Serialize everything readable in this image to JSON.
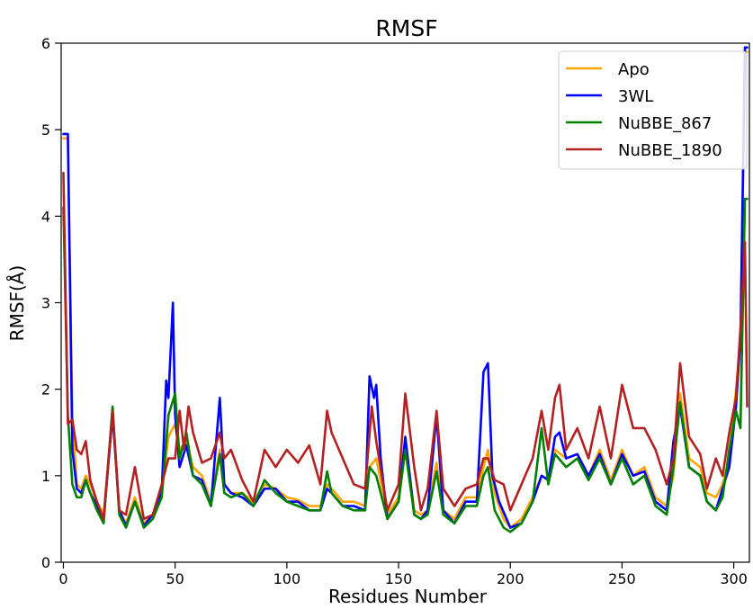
{
  "chart_data": {
    "type": "line",
    "title": "RMSF",
    "xlabel": "Residues Number",
    "ylabel": "RMSF(Å)",
    "xlim": [
      -1,
      307
    ],
    "ylim": [
      0,
      6
    ],
    "xticks": [
      0,
      50,
      100,
      150,
      200,
      250,
      300
    ],
    "yticks": [
      0,
      1,
      2,
      3,
      4,
      5,
      6
    ],
    "grid": false,
    "legend_position": "top-right",
    "series": [
      {
        "name": "Apo",
        "color": "#FFA500",
        "x": [
          0,
          2,
          4,
          6,
          8,
          10,
          12,
          15,
          18,
          22,
          25,
          28,
          32,
          36,
          40,
          44,
          47,
          50,
          52,
          55,
          58,
          62,
          66,
          70,
          72,
          75,
          80,
          85,
          90,
          95,
          100,
          105,
          110,
          115,
          118,
          120,
          125,
          130,
          135,
          137,
          140,
          145,
          150,
          153,
          157,
          160,
          163,
          167,
          170,
          175,
          180,
          185,
          188,
          190,
          193,
          197,
          200,
          205,
          210,
          214,
          217,
          220,
          225,
          230,
          235,
          240,
          245,
          250,
          255,
          260,
          265,
          270,
          273,
          276,
          280,
          285,
          288,
          292,
          295,
          298,
          301,
          303,
          305,
          306
        ],
        "y": [
          4.9,
          4.9,
          1.7,
          0.9,
          0.85,
          1.0,
          0.9,
          0.7,
          0.55,
          1.75,
          0.6,
          0.45,
          0.75,
          0.45,
          0.55,
          0.8,
          1.45,
          1.6,
          1.3,
          1.4,
          1.1,
          1.0,
          0.7,
          1.3,
          0.9,
          0.8,
          0.8,
          0.7,
          0.9,
          0.85,
          0.75,
          0.72,
          0.65,
          0.65,
          0.9,
          0.85,
          0.7,
          0.7,
          0.65,
          1.1,
          1.2,
          0.55,
          0.75,
          1.4,
          0.6,
          0.55,
          0.6,
          1.15,
          0.6,
          0.5,
          0.75,
          0.75,
          1.1,
          1.3,
          0.8,
          0.5,
          0.4,
          0.5,
          0.75,
          1.0,
          0.95,
          1.3,
          1.2,
          1.25,
          1.0,
          1.3,
          0.95,
          1.3,
          1.0,
          1.1,
          0.75,
          0.65,
          1.0,
          1.95,
          1.2,
          1.1,
          0.8,
          0.75,
          0.9,
          1.2,
          2.0,
          2.5,
          5.9,
          5.9
        ]
      },
      {
        "name": "3WL",
        "color": "#0000FF",
        "x": [
          0,
          2,
          4,
          6,
          8,
          10,
          12,
          15,
          18,
          22,
          25,
          28,
          32,
          36,
          40,
          44,
          46,
          47,
          49,
          50,
          52,
          55,
          58,
          62,
          66,
          70,
          72,
          75,
          80,
          85,
          90,
          95,
          100,
          105,
          110,
          115,
          118,
          120,
          125,
          130,
          135,
          137,
          139,
          140,
          142,
          145,
          150,
          153,
          157,
          160,
          163,
          167,
          170,
          175,
          180,
          185,
          188,
          190,
          192,
          195,
          200,
          205,
          210,
          214,
          217,
          220,
          222,
          225,
          230,
          235,
          240,
          245,
          250,
          255,
          260,
          265,
          270,
          273,
          276,
          280,
          285,
          288,
          292,
          295,
          298,
          301,
          303,
          305,
          306
        ],
        "y": [
          4.95,
          4.95,
          1.3,
          0.85,
          0.8,
          0.95,
          0.8,
          0.65,
          0.5,
          1.7,
          0.6,
          0.42,
          0.7,
          0.42,
          0.55,
          0.8,
          2.1,
          1.9,
          3.0,
          1.7,
          1.1,
          1.35,
          1.0,
          0.95,
          0.65,
          1.9,
          0.9,
          0.8,
          0.75,
          0.65,
          0.85,
          0.85,
          0.7,
          0.7,
          0.6,
          0.6,
          0.85,
          0.8,
          0.65,
          0.65,
          0.6,
          2.15,
          1.9,
          2.05,
          1.2,
          0.5,
          0.7,
          1.45,
          0.55,
          0.5,
          0.6,
          1.7,
          0.6,
          0.45,
          0.7,
          0.7,
          2.2,
          2.3,
          1.0,
          0.7,
          0.4,
          0.45,
          0.7,
          1.0,
          0.95,
          1.45,
          1.5,
          1.2,
          1.25,
          1.0,
          1.25,
          0.9,
          1.25,
          1.0,
          1.05,
          0.7,
          0.6,
          1.4,
          1.8,
          1.1,
          1.0,
          0.7,
          0.6,
          0.85,
          1.1,
          1.8,
          2.6,
          5.95,
          5.95
        ]
      },
      {
        "name": "NuBBE_867",
        "color": "#008000",
        "x": [
          0,
          2,
          4,
          6,
          8,
          10,
          12,
          15,
          18,
          22,
          25,
          28,
          32,
          36,
          40,
          44,
          47,
          50,
          52,
          55,
          58,
          62,
          66,
          70,
          72,
          75,
          80,
          85,
          90,
          95,
          100,
          105,
          110,
          115,
          118,
          120,
          125,
          130,
          135,
          137,
          140,
          145,
          150,
          153,
          157,
          160,
          163,
          167,
          170,
          175,
          180,
          185,
          188,
          190,
          193,
          197,
          200,
          205,
          210,
          214,
          217,
          220,
          225,
          230,
          235,
          240,
          245,
          250,
          255,
          260,
          265,
          270,
          273,
          276,
          280,
          285,
          288,
          292,
          295,
          298,
          301,
          303,
          305,
          306
        ],
        "y": [
          4.1,
          1.7,
          0.9,
          0.75,
          0.75,
          0.95,
          0.8,
          0.6,
          0.45,
          1.8,
          0.55,
          0.4,
          0.7,
          0.4,
          0.5,
          0.75,
          1.7,
          1.95,
          1.2,
          1.5,
          1.0,
          0.9,
          0.65,
          1.25,
          0.8,
          0.75,
          0.8,
          0.65,
          0.95,
          0.8,
          0.7,
          0.65,
          0.6,
          0.6,
          1.05,
          0.8,
          0.65,
          0.6,
          0.6,
          1.1,
          1.0,
          0.5,
          0.7,
          1.3,
          0.55,
          0.5,
          0.55,
          1.05,
          0.55,
          0.45,
          0.65,
          0.65,
          1.0,
          1.1,
          0.6,
          0.4,
          0.35,
          0.45,
          0.7,
          1.55,
          0.9,
          1.25,
          1.1,
          1.2,
          0.95,
          1.2,
          0.9,
          1.2,
          0.9,
          1.0,
          0.65,
          0.55,
          1.1,
          1.85,
          1.1,
          1.0,
          0.7,
          0.6,
          0.75,
          1.3,
          1.75,
          1.55,
          4.2,
          4.2
        ]
      },
      {
        "name": "NuBBE_1890",
        "color": "#B22222",
        "x": [
          0,
          2,
          4,
          6,
          8,
          10,
          12,
          15,
          18,
          22,
          25,
          28,
          32,
          36,
          40,
          44,
          47,
          50,
          52,
          54,
          56,
          58,
          62,
          66,
          70,
          72,
          75,
          80,
          85,
          90,
          95,
          100,
          105,
          110,
          115,
          118,
          120,
          125,
          130,
          135,
          138,
          140,
          145,
          150,
          153,
          157,
          160,
          163,
          167,
          170,
          175,
          180,
          185,
          188,
          190,
          193,
          197,
          200,
          205,
          210,
          214,
          217,
          220,
          222,
          225,
          230,
          235,
          240,
          245,
          250,
          255,
          260,
          265,
          270,
          273,
          276,
          280,
          285,
          288,
          292,
          295,
          298,
          301,
          303,
          305,
          306
        ],
        "y": [
          4.5,
          1.6,
          1.65,
          1.3,
          1.25,
          1.4,
          0.95,
          0.7,
          0.5,
          1.75,
          0.6,
          0.55,
          1.1,
          0.5,
          0.55,
          0.9,
          1.2,
          1.2,
          1.75,
          1.3,
          1.8,
          1.5,
          1.15,
          1.2,
          1.5,
          1.2,
          1.3,
          0.95,
          0.7,
          1.3,
          1.1,
          1.3,
          1.15,
          1.35,
          0.9,
          1.75,
          1.5,
          1.2,
          0.9,
          0.85,
          1.8,
          1.4,
          0.6,
          0.9,
          1.95,
          1.1,
          0.6,
          0.85,
          1.75,
          0.85,
          0.65,
          0.85,
          0.9,
          1.2,
          1.2,
          0.95,
          0.9,
          0.6,
          0.9,
          1.2,
          1.75,
          1.3,
          1.9,
          2.05,
          1.3,
          1.55,
          1.2,
          1.8,
          1.2,
          2.05,
          1.55,
          1.55,
          1.3,
          0.9,
          1.2,
          2.3,
          1.45,
          1.25,
          0.85,
          1.2,
          1.0,
          1.5,
          1.9,
          2.7,
          3.7,
          1.8
        ]
      }
    ]
  }
}
